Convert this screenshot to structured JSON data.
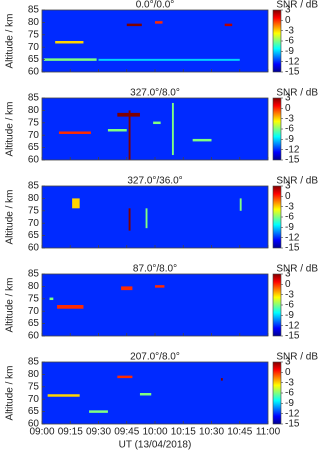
{
  "chart_data": [
    {
      "type": "heatmap",
      "title": "0.0°/0.0°",
      "ylabel": "Altitude / km",
      "colorbar_label": "SNR / dB",
      "xlim": [
        "09:00",
        "11:00"
      ],
      "xticks": [
        "09:00",
        "09:15",
        "09:30",
        "09:45",
        "10:00",
        "10:15",
        "10:30",
        "10:45",
        "11:00"
      ],
      "ylim": [
        60,
        85
      ],
      "yticks": [
        60,
        65,
        70,
        75,
        80,
        85
      ],
      "clim": [
        -15,
        3
      ],
      "cticks": [
        3,
        0,
        -3,
        -6,
        -9,
        -12,
        -15
      ],
      "background_snr": -12,
      "echoes": [
        {
          "t": [
            "09:07",
            "09:22"
          ],
          "alt": [
            71.5,
            72.5
          ],
          "snr": -3
        },
        {
          "t": [
            "09:45",
            "09:53"
          ],
          "alt": [
            78.5,
            79.5
          ],
          "snr": 3
        },
        {
          "t": [
            "10:00",
            "10:04"
          ],
          "alt": [
            79.5,
            80.5
          ],
          "snr": 0
        },
        {
          "t": [
            "10:37",
            "10:41"
          ],
          "alt": [
            78.5,
            79.5
          ],
          "snr": 2
        },
        {
          "t": [
            "09:01",
            "09:29"
          ],
          "alt": [
            64.5,
            65.5
          ],
          "snr": -6
        },
        {
          "t": [
            "09:30",
            "10:45"
          ],
          "alt": [
            64.5,
            65.3
          ],
          "snr": -9
        }
      ]
    },
    {
      "type": "heatmap",
      "title": "327.0°/8.0°",
      "ylabel": "Altitude / km",
      "colorbar_label": "SNR / dB",
      "xlim": [
        "09:00",
        "11:00"
      ],
      "xticks": [
        "09:00",
        "09:15",
        "09:30",
        "09:45",
        "10:00",
        "10:15",
        "10:30",
        "10:45",
        "11:00"
      ],
      "ylim": [
        60,
        85
      ],
      "yticks": [
        60,
        65,
        70,
        75,
        80,
        85
      ],
      "clim": [
        -15,
        3
      ],
      "cticks": [
        3,
        0,
        -3,
        -6,
        -9,
        -12,
        -15
      ],
      "background_snr": -12,
      "echoes": [
        {
          "t": [
            "09:40",
            "09:52"
          ],
          "alt": [
            77.5,
            79
          ],
          "snr": 3
        },
        {
          "t": [
            "09:09",
            "09:26"
          ],
          "alt": [
            70.5,
            71.5
          ],
          "snr": 0
        },
        {
          "t": [
            "09:46",
            "09:47"
          ],
          "alt": [
            60,
            80
          ],
          "snr": 3
        },
        {
          "t": [
            "10:09",
            "10:10"
          ],
          "alt": [
            62,
            83
          ],
          "snr": -6
        },
        {
          "t": [
            "09:59",
            "10:03"
          ],
          "alt": [
            74.5,
            75.5
          ],
          "snr": -6
        },
        {
          "t": [
            "10:20",
            "10:30"
          ],
          "alt": [
            67.5,
            68.5
          ],
          "snr": -6
        },
        {
          "t": [
            "09:35",
            "09:45"
          ],
          "alt": [
            71.5,
            72.5
          ],
          "snr": -6
        }
      ]
    },
    {
      "type": "heatmap",
      "title": "327.0°/36.0°",
      "ylabel": "Altitude / km",
      "colorbar_label": "SNR / dB",
      "xlim": [
        "09:00",
        "11:00"
      ],
      "xticks": [
        "09:00",
        "09:15",
        "09:30",
        "09:45",
        "10:00",
        "10:15",
        "10:30",
        "10:45",
        "11:00"
      ],
      "ylim": [
        60,
        85
      ],
      "yticks": [
        60,
        65,
        70,
        75,
        80,
        85
      ],
      "clim": [
        -15,
        3
      ],
      "cticks": [
        3,
        0,
        -3,
        -6,
        -9,
        -12,
        -15
      ],
      "background_snr": -12,
      "echoes": [
        {
          "t": [
            "09:16",
            "09:20"
          ],
          "alt": [
            76,
            80
          ],
          "snr": -3
        },
        {
          "t": [
            "09:46",
            "09:47"
          ],
          "alt": [
            67,
            76
          ],
          "snr": 3
        },
        {
          "t": [
            "09:55",
            "09:56"
          ],
          "alt": [
            68,
            76
          ],
          "snr": -6
        },
        {
          "t": [
            "10:45",
            "10:46"
          ],
          "alt": [
            75,
            80
          ],
          "snr": -6
        }
      ]
    },
    {
      "type": "heatmap",
      "title": "87.0°/8.0°",
      "ylabel": "Altitude / km",
      "colorbar_label": "SNR / dB",
      "xlim": [
        "09:00",
        "11:00"
      ],
      "xticks": [
        "09:00",
        "09:15",
        "09:30",
        "09:45",
        "10:00",
        "10:15",
        "10:30",
        "10:45",
        "11:00"
      ],
      "ylim": [
        60,
        85
      ],
      "yticks": [
        60,
        65,
        70,
        75,
        80,
        85
      ],
      "clim": [
        -15,
        3
      ],
      "cticks": [
        3,
        0,
        -3,
        -6,
        -9,
        -12,
        -15
      ],
      "background_snr": -12,
      "echoes": [
        {
          "t": [
            "09:08",
            "09:22"
          ],
          "alt": [
            71,
            72.5
          ],
          "snr": 0
        },
        {
          "t": [
            "09:42",
            "09:48"
          ],
          "alt": [
            78.5,
            80
          ],
          "snr": 0
        },
        {
          "t": [
            "10:00",
            "10:05"
          ],
          "alt": [
            79.5,
            80.5
          ],
          "snr": 0
        },
        {
          "t": [
            "09:04",
            "09:06"
          ],
          "alt": [
            74.5,
            75.5
          ],
          "snr": -6
        }
      ]
    },
    {
      "type": "heatmap",
      "title": "207.0°/8.0°",
      "ylabel": "Altitude / km",
      "colorbar_label": "SNR / dB",
      "xlabel": "UT (13/04/2018)",
      "xlim": [
        "09:00",
        "11:00"
      ],
      "xticks": [
        "09:00",
        "09:15",
        "09:30",
        "09:45",
        "10:00",
        "10:15",
        "10:30",
        "10:45",
        "11:00"
      ],
      "ylim": [
        60,
        85
      ],
      "yticks": [
        60,
        65,
        70,
        75,
        80,
        85
      ],
      "clim": [
        -15,
        3
      ],
      "cticks": [
        3,
        0,
        -3,
        -6,
        -9,
        -12,
        -15
      ],
      "background_snr": -12,
      "echoes": [
        {
          "t": [
            "09:03",
            "09:20"
          ],
          "alt": [
            71,
            72
          ],
          "snr": -3
        },
        {
          "t": [
            "09:40",
            "09:48"
          ],
          "alt": [
            78.5,
            79.5
          ],
          "snr": 0
        },
        {
          "t": [
            "10:35",
            "10:36"
          ],
          "alt": [
            77.5,
            78.5
          ],
          "snr": 3
        },
        {
          "t": [
            "09:25",
            "09:35"
          ],
          "alt": [
            64.5,
            65.5
          ],
          "snr": -6
        },
        {
          "t": [
            "09:52",
            "09:58"
          ],
          "alt": [
            71.5,
            72.5
          ],
          "snr": -6
        }
      ]
    }
  ]
}
